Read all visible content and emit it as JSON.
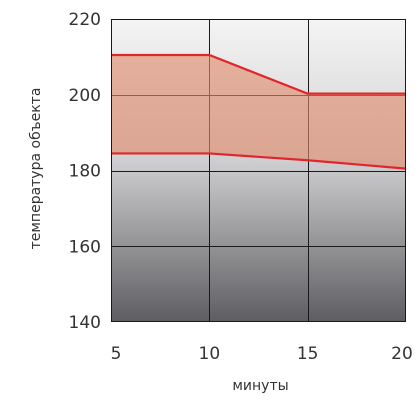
{
  "chart_data": {
    "type": "area",
    "xlabel": "минуты",
    "ylabel": "температура объекта",
    "xlim": [
      5,
      20
    ],
    "ylim": [
      140,
      220
    ],
    "x_ticks": [
      5,
      10,
      15,
      20
    ],
    "y_ticks": [
      140,
      160,
      180,
      200,
      220
    ],
    "x_tick_labels": [
      "5",
      "10",
      "15",
      "20"
    ],
    "y_tick_labels": [
      "140",
      "160",
      "180",
      "200",
      "220"
    ],
    "grid": true,
    "background_gradient": {
      "top": "#f4f4f4",
      "bottom": "#5e5e62"
    },
    "band": {
      "x": [
        5,
        10,
        15,
        20
      ],
      "upper": [
        210.5,
        210.5,
        200.3,
        200.3
      ],
      "lower": [
        184.5,
        184.5,
        182.7,
        180.5
      ],
      "fill_color": "#e08a6a",
      "line_color": "#e0262b"
    }
  }
}
